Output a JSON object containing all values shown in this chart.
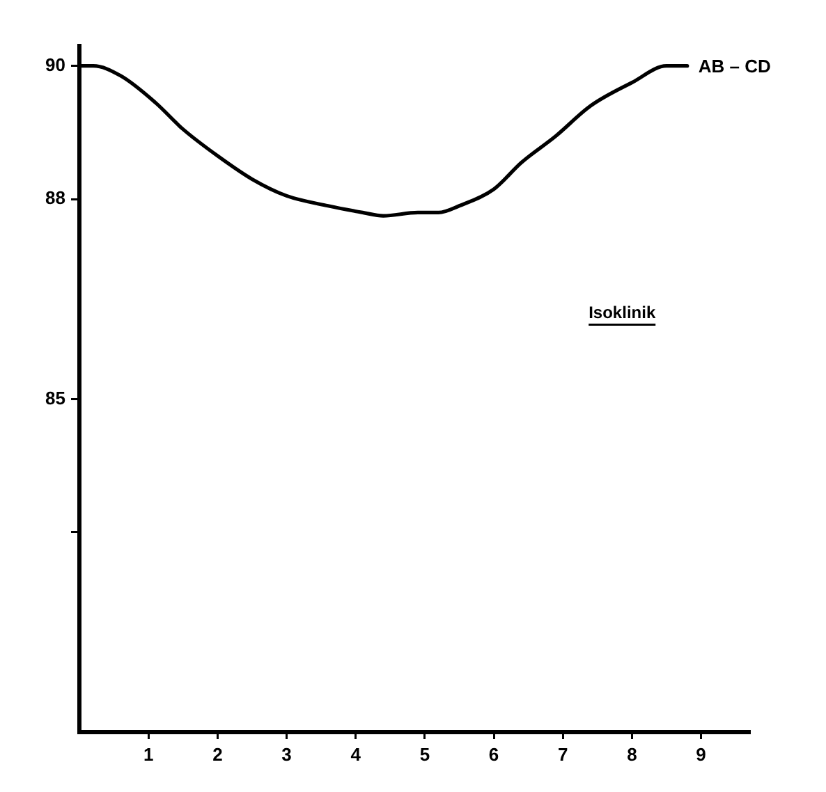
{
  "chart_data": {
    "type": "line",
    "annotations": [
      "Isoklinik"
    ],
    "x": [
      0,
      0.2,
      0.6,
      1.1,
      1.5,
      2.0,
      2.5,
      3.0,
      3.6,
      4.1,
      4.4,
      4.9,
      5.2,
      5.5,
      6.0,
      6.4,
      6.9,
      7.4,
      8.0,
      8.5,
      8.8
    ],
    "series": [
      {
        "name": "AB – CD",
        "color": "#000000",
        "values": [
          90,
          90,
          89.85,
          89.45,
          89.05,
          88.65,
          88.3,
          88.05,
          87.9,
          87.8,
          87.75,
          87.8,
          87.8,
          87.9,
          88.15,
          88.55,
          88.95,
          89.4,
          89.75,
          90,
          90
        ]
      }
    ],
    "xlim": [
      0,
      9.7
    ],
    "ylim": [
      80,
      90.3
    ],
    "xticks": [
      1,
      2,
      3,
      4,
      5,
      6,
      7,
      8,
      9
    ],
    "yticks": [
      90,
      88,
      85,
      {
        "value": 83,
        "label": null
      }
    ],
    "grid": false,
    "legend": false,
    "marker": "none",
    "line_style": "solid"
  }
}
